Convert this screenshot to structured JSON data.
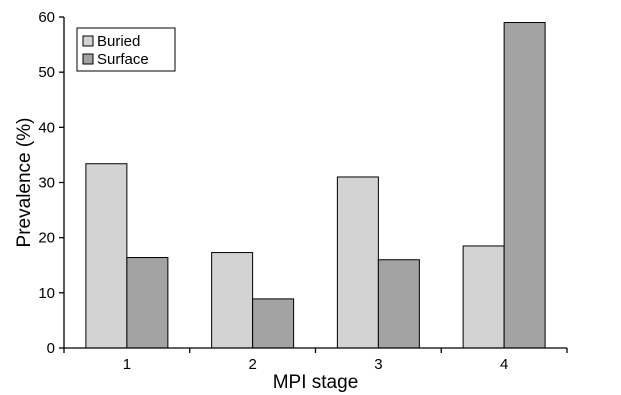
{
  "chart_data": {
    "type": "bar",
    "xlabel": "MPI stage",
    "ylabel": "Prevalence (%)",
    "categories": [
      "1",
      "2",
      "3",
      "4"
    ],
    "ylim": [
      0,
      60
    ],
    "yticks": [
      0,
      10,
      20,
      30,
      40,
      50,
      60
    ],
    "grid": false,
    "legend_position": "top-left",
    "series": [
      {
        "name": "Buried",
        "color": "#d3d3d3",
        "values": [
          33.4,
          17.3,
          31.0,
          18.5
        ]
      },
      {
        "name": "Surface",
        "color": "#a3a3a3",
        "values": [
          16.4,
          8.9,
          16.0,
          59.0
        ]
      }
    ]
  }
}
